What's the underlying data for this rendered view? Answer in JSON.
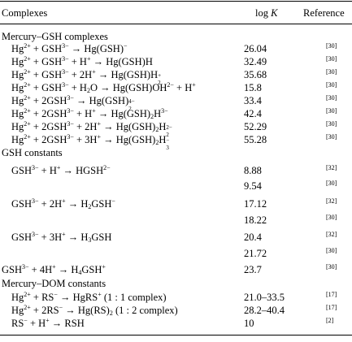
{
  "headers": {
    "complexes": "Complexes",
    "logk_prefix": "log",
    "logk_var": "K",
    "reference": "Reference"
  },
  "sections": [
    {
      "title": "Mercury–GSH complexes"
    },
    {
      "title": "GSH constants"
    },
    {
      "title": "Mercury–DOM constants"
    }
  ],
  "rows": [
    {
      "equation": "Hg²⁺ + GSH³⁻ → Hg(GSH)⁻",
      "logk": "26.04",
      "ref": "[30]"
    },
    {
      "equation": "Hg²⁺ + GSH³⁻ + H⁺ → Hg(GSH)H",
      "logk": "32.49",
      "ref": "[30]"
    },
    {
      "equation": "Hg²⁺ + GSH³⁻ + 2H⁺ → Hg(GSH)H₂⁺",
      "logk": "35.68",
      "ref": "[30]"
    },
    {
      "equation": "Hg²⁺ + GSH³⁻ + H₂O → Hg(GSH)OH²⁻ + H⁺",
      "logk": "15.8",
      "ref": "[30]"
    },
    {
      "equation": "Hg²⁺ + 2GSH³⁻ → Hg(GSH)₂⁴⁻",
      "logk": "33.4",
      "ref": "[30]"
    },
    {
      "equation": "Hg²⁺ + 2GSH³⁻ + H⁺ → Hg(GSH)₂H³⁻",
      "logk": "42.4",
      "ref": "[30]"
    },
    {
      "equation": "Hg²⁺ + 2GSH³⁻ + 2H⁺ → Hg(GSH)₂H₂²⁻",
      "logk": "52.29",
      "ref": "[30]"
    },
    {
      "equation": "Hg²⁺ + 2GSH³⁻ + 3H⁺ → Hg(GSH)₂H₃⁻",
      "logk": "55.28",
      "ref": "[30]"
    },
    {
      "equation": "GSH³⁻ + H⁺ → HGSH²⁻",
      "logk": "8.88",
      "ref": "[32]"
    },
    {
      "equation": "",
      "logk": "9.54",
      "ref": "[30]"
    },
    {
      "equation": "GSH³⁻ + 2H⁺ → H₂GSH⁻",
      "logk": "17.12",
      "ref": "[32]"
    },
    {
      "equation": "",
      "logk": "18.22",
      "ref": "[30]"
    },
    {
      "equation": "GSH³⁻ + 3H⁺ → H₃GSH",
      "logk": "20.4",
      "ref": "[32]"
    },
    {
      "equation": "",
      "logk": "21.72",
      "ref": "[30]"
    },
    {
      "equation": "GSH³⁻ + 4H⁺ → H₄GSH⁺",
      "logk": "23.7",
      "ref": "[30]"
    },
    {
      "equation": "Hg²⁺ + RS⁻ → HgRS⁺ (1 : 1 complex)",
      "logk": "21.0–33.5",
      "ref": "[17]"
    },
    {
      "equation": "Hg²⁺ + 2RS⁻ → Hg(RS)₂ (1 : 2 complex)",
      "logk": "28.2–40.4",
      "ref": "[17]"
    },
    {
      "equation": "RS⁻ + H⁺ → RSH",
      "logk": "10",
      "ref": "[2]"
    }
  ]
}
